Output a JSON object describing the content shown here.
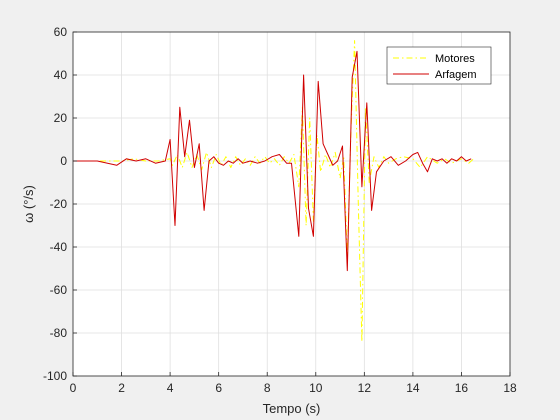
{
  "chart_data": {
    "type": "line",
    "title": "",
    "xlabel": "Tempo (s)",
    "ylabel": "ω (°/s)",
    "xlim": [
      0,
      18
    ],
    "ylim": [
      -100,
      60
    ],
    "xticks": [
      0,
      2,
      4,
      6,
      8,
      10,
      12,
      14,
      16,
      18
    ],
    "yticks": [
      -100,
      -80,
      -60,
      -40,
      -20,
      0,
      20,
      40,
      60
    ],
    "grid": true,
    "legend_position": "top-right",
    "series": [
      {
        "name": "Motores",
        "color": "#ffff00",
        "style": "dash-dot",
        "x": [
          0,
          1,
          2,
          2.5,
          3,
          3.5,
          4,
          4.1,
          4.3,
          4.5,
          4.7,
          4.9,
          5.1,
          5.3,
          5.5,
          5.7,
          5.9,
          6.1,
          6.3,
          6.5,
          6.7,
          6.9,
          7.1,
          7.3,
          7.5,
          7.7,
          7.9,
          8.1,
          8.3,
          8.5,
          8.7,
          8.9,
          9.1,
          9.3,
          9.45,
          9.6,
          9.75,
          9.9,
          10.05,
          10.2,
          10.4,
          10.6,
          10.8,
          11.0,
          11.15,
          11.3,
          11.45,
          11.6,
          11.75,
          11.9,
          12.05,
          12.2,
          12.4,
          12.6,
          12.8,
          13.0,
          13.3,
          13.6,
          14.0,
          14.3,
          14.6,
          15.0,
          15.3,
          15.6,
          16.0,
          16.3,
          16.5
        ],
        "y": [
          0,
          0,
          0,
          1,
          0,
          0,
          1,
          -2,
          3,
          -3,
          4,
          -3,
          3,
          -4,
          4,
          -3,
          3,
          -2,
          2,
          -3,
          2,
          -2,
          1,
          -2,
          2,
          -1,
          2,
          -1,
          1,
          -2,
          2,
          -1,
          3,
          -12,
          25,
          -30,
          20,
          -28,
          12,
          -5,
          3,
          -3,
          4,
          -8,
          2,
          -45,
          15,
          56,
          -20,
          -84,
          25,
          -10,
          2,
          -3,
          2,
          -1,
          1,
          2,
          1,
          -3,
          2,
          -1,
          1,
          -1,
          1,
          -1,
          1
        ]
      },
      {
        "name": "Arfagem",
        "color": "#d00000",
        "style": "solid",
        "x": [
          0,
          1,
          1.8,
          2.2,
          2.6,
          3,
          3.4,
          3.8,
          4.0,
          4.2,
          4.4,
          4.6,
          4.8,
          5.0,
          5.2,
          5.4,
          5.6,
          5.8,
          6.0,
          6.2,
          6.4,
          6.6,
          6.8,
          7.0,
          7.3,
          7.6,
          7.9,
          8.2,
          8.5,
          8.8,
          9.0,
          9.3,
          9.5,
          9.7,
          9.9,
          10.1,
          10.3,
          10.5,
          10.7,
          10.9,
          11.1,
          11.3,
          11.5,
          11.7,
          11.9,
          12.1,
          12.3,
          12.5,
          12.8,
          13.1,
          13.4,
          13.7,
          14.0,
          14.2,
          14.4,
          14.6,
          14.8,
          15.0,
          15.2,
          15.4,
          15.6,
          15.8,
          16.0,
          16.2,
          16.4
        ],
        "y": [
          0,
          0,
          -2,
          1,
          0,
          1,
          -1,
          0,
          10,
          -30,
          25,
          2,
          19,
          -3,
          8,
          -23,
          0,
          2,
          -1,
          -2,
          0,
          -1,
          1,
          -1,
          0,
          -1,
          0,
          2,
          3,
          -1,
          -1,
          -35,
          40,
          -22,
          -35,
          37,
          8,
          3,
          -2,
          0,
          7,
          -51,
          39,
          51,
          -12,
          27,
          -23,
          -5,
          0,
          2,
          -2,
          0,
          3,
          4,
          -1,
          -5,
          1,
          0,
          1,
          -1,
          1,
          0,
          2,
          0,
          1
        ]
      }
    ]
  }
}
